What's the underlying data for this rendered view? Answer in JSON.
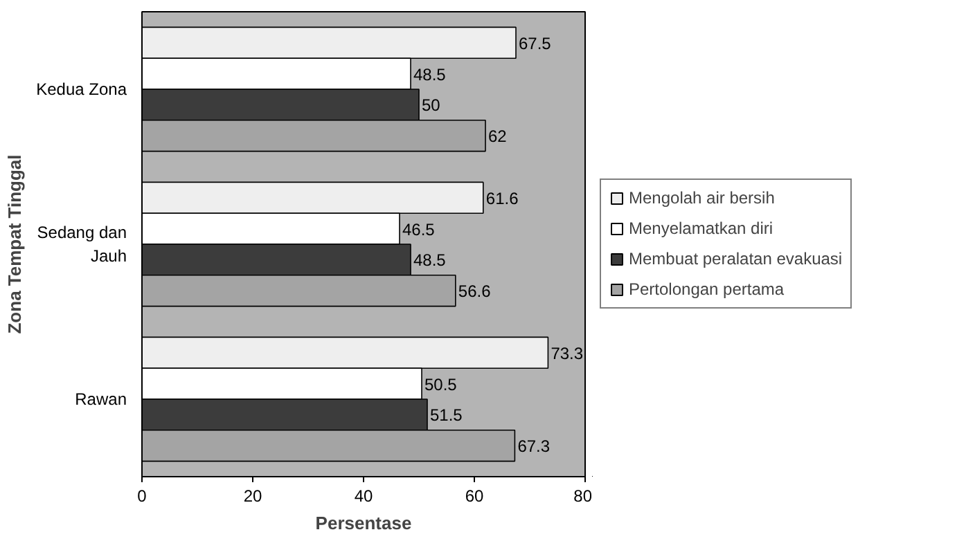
{
  "chart_data": {
    "type": "bar",
    "orientation": "horizontal",
    "xlabel": "Persentase",
    "ylabel": "Zona Tempat Tinggal",
    "categories": [
      "Kedua Zona",
      "Sedang dan Jauh",
      "Rawan"
    ],
    "series": [
      {
        "name": "Mengolah air bersih",
        "color": "#eeeeee",
        "values": [
          67.5,
          61.6,
          73.3
        ]
      },
      {
        "name": "Menyelamatkan diri",
        "color": "#ffffff",
        "values": [
          48.5,
          46.5,
          50.5
        ]
      },
      {
        "name": "Membuat peralatan evakuasi",
        "color": "#3c3c3c",
        "values": [
          50,
          48.5,
          51.5
        ]
      },
      {
        "name": "Pertolongan pertama",
        "color": "#a4a4a4",
        "values": [
          62,
          56.6,
          67.3
        ]
      }
    ],
    "xlim": [
      0,
      80
    ],
    "xticks": [
      0,
      20,
      40,
      60,
      80
    ],
    "data_labels": true,
    "grid": false,
    "legend": "right"
  }
}
